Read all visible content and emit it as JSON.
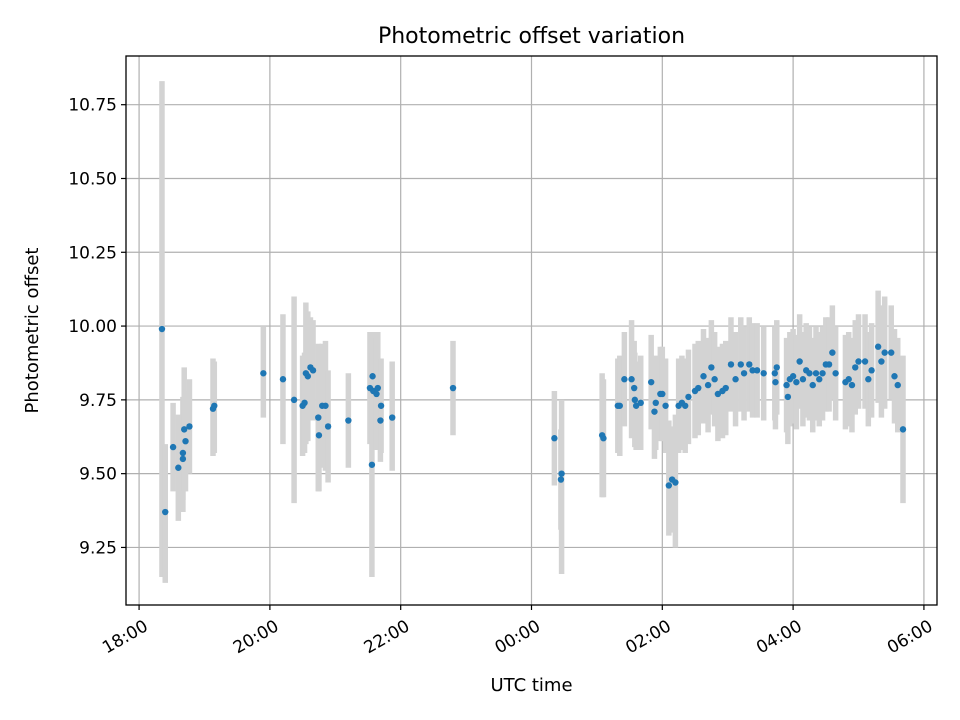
{
  "chart_data": {
    "type": "scatter",
    "title": "Photometric offset variation",
    "xlabel": "UTC time",
    "ylabel": "Photometric offset",
    "grid": true,
    "colors": {
      "point": "#1f77b4",
      "errorbar": "#d3d3d3",
      "grid": "#b0b0b0"
    },
    "x_unit": "hours since 18:00 UTC",
    "xlim": [
      -0.2,
      12.2
    ],
    "ylim": [
      9.055,
      10.915
    ],
    "xticks": [
      {
        "value": 0,
        "label": "18:00"
      },
      {
        "value": 2,
        "label": "20:00"
      },
      {
        "value": 4,
        "label": "22:00"
      },
      {
        "value": 6,
        "label": "00:00"
      },
      {
        "value": 8,
        "label": "02:00"
      },
      {
        "value": 10,
        "label": "04:00"
      },
      {
        "value": 12,
        "label": "06:00"
      }
    ],
    "yticks": [
      {
        "value": 9.25,
        "label": "9.25"
      },
      {
        "value": 9.5,
        "label": "9.50"
      },
      {
        "value": 9.75,
        "label": "9.75"
      },
      {
        "value": 10.0,
        "label": "10.00"
      },
      {
        "value": 10.25,
        "label": "10.25"
      },
      {
        "value": 10.5,
        "label": "10.50"
      },
      {
        "value": 10.75,
        "label": "10.75"
      }
    ],
    "points": [
      [
        0.35,
        9.99,
        10.83,
        9.15
      ],
      [
        0.4,
        9.37,
        9.6,
        9.13
      ],
      [
        0.52,
        9.59,
        9.74,
        9.44
      ],
      [
        0.6,
        9.52,
        9.7,
        9.34
      ],
      [
        0.67,
        9.57,
        9.76,
        9.37
      ],
      [
        0.67,
        9.55,
        9.7,
        9.41
      ],
      [
        0.69,
        9.65,
        9.86,
        9.44
      ],
      [
        0.71,
        9.61,
        9.78,
        9.44
      ],
      [
        0.77,
        9.66,
        9.82,
        9.5
      ],
      [
        1.13,
        9.72,
        9.89,
        9.56
      ],
      [
        1.15,
        9.73,
        9.88,
        9.57
      ],
      [
        1.9,
        9.84,
        10.0,
        9.69
      ],
      [
        2.2,
        9.82,
        10.04,
        9.6
      ],
      [
        2.37,
        9.75,
        10.1,
        9.4
      ],
      [
        2.5,
        9.73,
        9.9,
        9.56
      ],
      [
        2.53,
        9.74,
        9.91,
        9.57
      ],
      [
        2.55,
        9.84,
        10.08,
        9.6
      ],
      [
        2.58,
        9.83,
        10.05,
        9.61
      ],
      [
        2.62,
        9.86,
        10.03,
        9.69
      ],
      [
        2.66,
        9.85,
        10.02,
        9.68
      ],
      [
        2.74,
        9.69,
        9.94,
        9.44
      ],
      [
        2.75,
        9.63,
        9.82,
        9.44
      ],
      [
        2.8,
        9.73,
        9.94,
        9.52
      ],
      [
        2.85,
        9.73,
        9.95,
        9.51
      ],
      [
        2.89,
        9.66,
        9.85,
        9.47
      ],
      [
        3.2,
        9.68,
        9.84,
        9.52
      ],
      [
        3.53,
        9.79,
        9.98,
        9.6
      ],
      [
        3.56,
        9.53,
        9.91,
        9.15
      ],
      [
        3.57,
        9.83,
        9.98,
        9.68
      ],
      [
        3.58,
        9.78,
        9.98,
        9.58
      ],
      [
        3.63,
        9.77,
        9.96,
        9.58
      ],
      [
        3.65,
        9.79,
        9.98,
        9.6
      ],
      [
        3.69,
        9.68,
        9.82,
        9.54
      ],
      [
        3.7,
        9.73,
        9.89,
        9.57
      ],
      [
        3.87,
        9.69,
        9.88,
        9.51
      ],
      [
        4.8,
        9.79,
        9.95,
        9.63
      ],
      [
        6.35,
        9.62,
        9.78,
        9.46
      ],
      [
        6.45,
        9.48,
        9.65,
        9.31
      ],
      [
        6.46,
        9.5,
        9.75,
        9.16
      ],
      [
        7.08,
        9.63,
        9.84,
        9.42
      ],
      [
        7.1,
        9.62,
        9.82,
        9.42
      ],
      [
        7.32,
        9.73,
        9.89,
        9.57
      ],
      [
        7.35,
        9.73,
        9.9,
        9.56
      ],
      [
        7.42,
        9.82,
        9.98,
        9.66
      ],
      [
        7.53,
        9.82,
        10.02,
        9.62
      ],
      [
        7.57,
        9.79,
        9.95,
        9.63
      ],
      [
        7.58,
        9.75,
        9.91,
        9.59
      ],
      [
        7.6,
        9.73,
        9.88,
        9.58
      ],
      [
        7.67,
        9.74,
        9.9,
        9.58
      ],
      [
        7.83,
        9.81,
        9.97,
        9.65
      ],
      [
        7.88,
        9.71,
        9.87,
        9.55
      ],
      [
        7.9,
        9.74,
        9.9,
        9.58
      ],
      [
        7.97,
        9.77,
        9.93,
        9.61
      ],
      [
        8.0,
        9.77,
        9.93,
        9.61
      ],
      [
        8.05,
        9.73,
        9.89,
        9.57
      ],
      [
        8.1,
        9.46,
        9.68,
        9.29
      ],
      [
        8.15,
        9.48,
        9.66,
        9.3
      ],
      [
        8.2,
        9.47,
        9.7,
        9.25
      ],
      [
        8.25,
        9.73,
        9.89,
        9.57
      ],
      [
        8.3,
        9.74,
        9.9,
        9.58
      ],
      [
        8.35,
        9.73,
        9.89,
        9.57
      ],
      [
        8.4,
        9.76,
        9.92,
        9.6
      ],
      [
        8.5,
        9.78,
        9.94,
        9.62
      ],
      [
        8.55,
        9.79,
        9.95,
        9.63
      ],
      [
        8.63,
        9.83,
        9.99,
        9.67
      ],
      [
        8.7,
        9.8,
        9.96,
        9.64
      ],
      [
        8.75,
        9.86,
        10.02,
        9.7
      ],
      [
        8.8,
        9.82,
        9.98,
        9.66
      ],
      [
        8.85,
        9.77,
        9.93,
        9.61
      ],
      [
        8.92,
        9.78,
        9.94,
        9.62
      ],
      [
        8.97,
        9.79,
        9.95,
        9.63
      ],
      [
        9.05,
        9.87,
        10.03,
        9.71
      ],
      [
        9.12,
        9.82,
        9.98,
        9.66
      ],
      [
        9.2,
        9.87,
        10.03,
        9.71
      ],
      [
        9.25,
        9.84,
        10.0,
        9.68
      ],
      [
        9.33,
        9.87,
        10.03,
        9.71
      ],
      [
        9.38,
        9.85,
        10.01,
        9.69
      ],
      [
        9.45,
        9.85,
        10.01,
        9.69
      ],
      [
        9.55,
        9.84,
        10.0,
        9.68
      ],
      [
        9.72,
        9.84,
        10.0,
        9.68
      ],
      [
        9.73,
        9.81,
        9.97,
        9.65
      ],
      [
        9.75,
        9.86,
        10.02,
        9.7
      ],
      [
        9.9,
        9.8,
        9.96,
        9.64
      ],
      [
        9.92,
        9.76,
        9.92,
        9.6
      ],
      [
        9.95,
        9.82,
        9.98,
        9.66
      ],
      [
        10.0,
        9.83,
        9.99,
        9.67
      ],
      [
        10.05,
        9.81,
        9.97,
        9.65
      ],
      [
        10.1,
        9.88,
        10.04,
        9.72
      ],
      [
        10.15,
        9.82,
        9.98,
        9.66
      ],
      [
        10.2,
        9.85,
        10.01,
        9.69
      ],
      [
        10.25,
        9.84,
        10.0,
        9.68
      ],
      [
        10.3,
        9.8,
        9.96,
        9.64
      ],
      [
        10.35,
        9.84,
        10.0,
        9.68
      ],
      [
        10.4,
        9.82,
        9.98,
        9.66
      ],
      [
        10.45,
        9.84,
        10.0,
        9.68
      ],
      [
        10.5,
        9.87,
        10.03,
        9.71
      ],
      [
        10.55,
        9.87,
        10.03,
        9.71
      ],
      [
        10.6,
        9.91,
        10.07,
        9.75
      ],
      [
        10.65,
        9.84,
        10.0,
        9.68
      ],
      [
        10.8,
        9.81,
        9.97,
        9.65
      ],
      [
        10.85,
        9.82,
        9.98,
        9.66
      ],
      [
        10.9,
        9.8,
        9.96,
        9.64
      ],
      [
        10.95,
        9.86,
        10.02,
        9.7
      ],
      [
        11.0,
        9.88,
        10.04,
        9.72
      ],
      [
        11.1,
        9.88,
        10.04,
        9.72
      ],
      [
        11.15,
        9.82,
        9.98,
        9.66
      ],
      [
        11.2,
        9.85,
        10.01,
        9.69
      ],
      [
        11.3,
        9.93,
        10.12,
        9.74
      ],
      [
        11.35,
        9.88,
        10.07,
        9.69
      ],
      [
        11.4,
        9.91,
        10.1,
        9.72
      ],
      [
        11.5,
        9.91,
        10.07,
        9.75
      ],
      [
        11.55,
        9.83,
        9.99,
        9.67
      ],
      [
        11.6,
        9.8,
        9.96,
        9.64
      ],
      [
        11.68,
        9.65,
        9.9,
        9.4
      ]
    ]
  }
}
